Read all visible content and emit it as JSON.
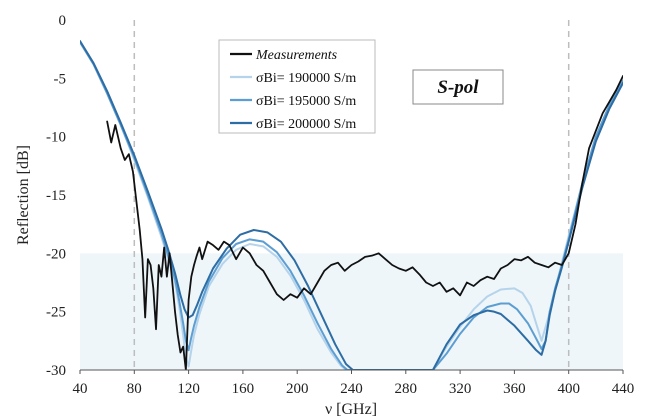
{
  "chart_data": {
    "type": "line",
    "xlabel": "ν [GHz]",
    "ylabel": "Reflection [dB]",
    "xlim": [
      40,
      440
    ],
    "ylim": [
      -30,
      0
    ],
    "xticks": [
      "40",
      "80",
      "120",
      "160",
      "200",
      "240",
      "280",
      "320",
      "360",
      "400",
      "440"
    ],
    "yticks": [
      "0",
      "-5",
      "-10",
      "-15",
      "-20",
      "-25",
      "-30"
    ],
    "shaded_band": {
      "y_from": -30,
      "y_to": -20,
      "color": "#eef6fa"
    },
    "reference_lines_x": [
      80,
      400
    ],
    "annotation": "S-pol",
    "legend_position": "top-center",
    "series": [
      {
        "name": "Measurements",
        "color": "#111111",
        "x": [
          60,
          63,
          66,
          70,
          73,
          76,
          79,
          82,
          84,
          86,
          88,
          90,
          92,
          94,
          96,
          98,
          100,
          102,
          104,
          106,
          108,
          110,
          112,
          114,
          116,
          118,
          120,
          122,
          124,
          126,
          128,
          130,
          134,
          138,
          142,
          146,
          150,
          155,
          160,
          165,
          170,
          175,
          180,
          185,
          190,
          195,
          200,
          205,
          210,
          215,
          220,
          225,
          230,
          235,
          240,
          245,
          250,
          255,
          260,
          265,
          270,
          275,
          280,
          285,
          290,
          295,
          300,
          305,
          310,
          315,
          320,
          325,
          330,
          335,
          340,
          345,
          350,
          355,
          360,
          365,
          370,
          375,
          380,
          385,
          390,
          395,
          400,
          405,
          410,
          415,
          420,
          425,
          430,
          435,
          440
        ],
        "y": [
          -8.7,
          -10.5,
          -9.0,
          -11.0,
          -12.0,
          -11.5,
          -13.0,
          -16.0,
          -18.0,
          -20.5,
          -25.5,
          -20.5,
          -21.0,
          -23.0,
          -26.5,
          -21.0,
          -22.0,
          -19.5,
          -22.0,
          -20.0,
          -22.5,
          -25.0,
          -27.0,
          -28.5,
          -28.0,
          -30.0,
          -24.0,
          -22.0,
          -21.0,
          -20.2,
          -19.5,
          -20.5,
          -19.0,
          -19.3,
          -19.7,
          -19.0,
          -19.3,
          -20.5,
          -19.5,
          -20.0,
          -21.0,
          -21.5,
          -22.5,
          -23.5,
          -24.0,
          -23.5,
          -23.8,
          -23.0,
          -23.5,
          -22.5,
          -21.5,
          -21.0,
          -20.8,
          -21.5,
          -21.0,
          -20.7,
          -20.3,
          -20.2,
          -20.0,
          -20.5,
          -21.0,
          -21.3,
          -21.5,
          -21.2,
          -21.8,
          -22.5,
          -22.8,
          -22.5,
          -23.3,
          -23.0,
          -23.6,
          -22.5,
          -22.8,
          -22.3,
          -22.0,
          -22.2,
          -21.3,
          -21.0,
          -20.5,
          -20.6,
          -20.3,
          -20.8,
          -21.0,
          -21.2,
          -20.8,
          -21.0,
          -20.0,
          -17.5,
          -14.0,
          -11.0,
          -9.5,
          -8.0,
          -7.0,
          -6.0,
          -4.8
        ]
      },
      {
        "name": "σBi= 190000 S/m",
        "color": "#b5d3ea",
        "x": [
          40,
          50,
          60,
          70,
          80,
          90,
          100,
          105,
          110,
          113,
          116,
          118,
          120,
          122,
          124,
          128,
          135,
          145,
          155,
          165,
          175,
          185,
          195,
          205,
          215,
          225,
          232,
          236,
          300,
          310,
          320,
          330,
          340,
          350,
          360,
          366,
          372,
          376,
          380,
          385,
          390,
          395,
          400,
          410,
          420,
          430,
          440
        ],
        "y": [
          -1.9,
          -3.8,
          -6.3,
          -9.0,
          -12.0,
          -15.2,
          -18.6,
          -20.5,
          -22.5,
          -24.5,
          -27.0,
          -29.0,
          -29.7,
          -28.3,
          -27.0,
          -25.2,
          -22.8,
          -20.9,
          -19.7,
          -19.2,
          -19.4,
          -20.3,
          -21.9,
          -24.0,
          -26.5,
          -28.5,
          -29.6,
          -30.0,
          -30.0,
          -28.0,
          -26.3,
          -24.8,
          -23.7,
          -23.1,
          -23.0,
          -23.4,
          -24.5,
          -26.0,
          -27.5,
          -25.5,
          -23.2,
          -20.8,
          -18.5,
          -14.0,
          -10.0,
          -7.3,
          -5.1
        ]
      },
      {
        "name": "σBi= 195000 S/m",
        "color": "#5d9ed2",
        "x": [
          40,
          50,
          60,
          70,
          80,
          90,
          100,
          105,
          110,
          113,
          116,
          118,
          120,
          122,
          124,
          128,
          135,
          145,
          155,
          165,
          175,
          185,
          195,
          205,
          215,
          225,
          233,
          237,
          300,
          310,
          320,
          330,
          340,
          350,
          356,
          362,
          370,
          376,
          380,
          383,
          386,
          390,
          395,
          400,
          410,
          420,
          430,
          440
        ],
        "y": [
          -1.9,
          -3.8,
          -6.3,
          -9.0,
          -11.8,
          -15.0,
          -18.3,
          -20.2,
          -22.2,
          -24.0,
          -26.0,
          -27.5,
          -28.3,
          -27.2,
          -26.2,
          -24.6,
          -22.4,
          -20.4,
          -19.2,
          -18.8,
          -19.0,
          -19.9,
          -21.5,
          -23.6,
          -26.0,
          -28.2,
          -29.6,
          -30.0,
          -30.0,
          -28.6,
          -26.9,
          -25.5,
          -24.6,
          -24.3,
          -24.3,
          -24.8,
          -26.0,
          -27.3,
          -28.2,
          -27.5,
          -25.0,
          -23.0,
          -21.0,
          -18.8,
          -14.0,
          -10.0,
          -7.3,
          -5.2
        ]
      },
      {
        "name": "σBi= 200000 S/m",
        "color": "#2e6da4",
        "x": [
          40,
          50,
          60,
          70,
          80,
          90,
          100,
          105,
          110,
          114,
          117,
          120,
          123,
          126,
          130,
          138,
          148,
          158,
          168,
          178,
          188,
          198,
          208,
          218,
          228,
          236,
          241,
          300,
          310,
          320,
          330,
          340,
          345,
          350,
          360,
          370,
          376,
          380,
          383,
          386,
          390,
          395,
          400,
          410,
          420,
          430,
          440
        ],
        "y": [
          -1.8,
          -3.7,
          -6.1,
          -8.8,
          -11.6,
          -14.7,
          -17.9,
          -19.7,
          -21.7,
          -23.6,
          -24.8,
          -25.5,
          -25.3,
          -24.5,
          -23.3,
          -21.3,
          -19.6,
          -18.4,
          -18.0,
          -18.2,
          -19.0,
          -20.6,
          -22.8,
          -25.3,
          -27.8,
          -29.5,
          -30.0,
          -30.0,
          -27.8,
          -26.1,
          -25.3,
          -24.9,
          -25.0,
          -25.2,
          -26.2,
          -27.5,
          -28.3,
          -28.7,
          -27.5,
          -25.3,
          -23.2,
          -21.2,
          -19.0,
          -14.4,
          -10.4,
          -7.6,
          -5.4
        ]
      }
    ]
  }
}
